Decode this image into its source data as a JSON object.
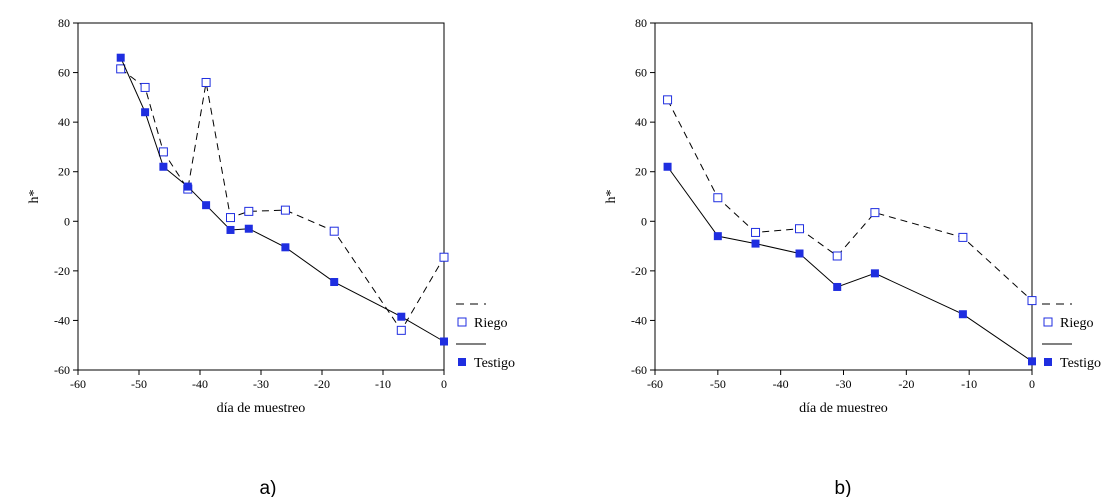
{
  "chart_data": [
    {
      "type": "line",
      "panel_label": "a)",
      "xlabel": "día de muestreo",
      "ylabel": "h*",
      "xlim": [
        -60,
        0
      ],
      "ylim": [
        -60,
        80
      ],
      "xticks": [
        -60,
        -50,
        -40,
        -30,
        -20,
        -10,
        0
      ],
      "yticks": [
        -60,
        -40,
        -20,
        0,
        20,
        40,
        60,
        80
      ],
      "grid": false,
      "legend_position": "right",
      "series": [
        {
          "name": "Riego",
          "marker": "open-square",
          "line": "dashed",
          "color": "#1f2ee0",
          "x": [
            -53,
            -49,
            -46,
            -42,
            -39,
            -35,
            -32,
            -26,
            -18,
            -7,
            0
          ],
          "y": [
            61.5,
            54,
            28,
            13,
            56,
            1.5,
            4,
            4.5,
            -4,
            -44,
            -14.5
          ]
        },
        {
          "name": "Testigo",
          "marker": "filled-square",
          "line": "solid",
          "color": "#1f2ee0",
          "x": [
            -53,
            -49,
            -46,
            -42,
            -39,
            -35,
            -32,
            -26,
            -18,
            -7,
            0
          ],
          "y": [
            66,
            44,
            22,
            14,
            6.5,
            -3.5,
            -3,
            -10.5,
            -24.5,
            -38.5,
            -48.5
          ]
        }
      ]
    },
    {
      "type": "line",
      "panel_label": "b)",
      "xlabel": "día de muestreo",
      "ylabel": "h*",
      "xlim": [
        -60,
        0
      ],
      "ylim": [
        -60,
        80
      ],
      "xticks": [
        -60,
        -50,
        -40,
        -30,
        -20,
        -10,
        0
      ],
      "yticks": [
        -60,
        -40,
        -20,
        0,
        20,
        40,
        60,
        80
      ],
      "grid": false,
      "legend_position": "right",
      "series": [
        {
          "name": "Riego",
          "marker": "open-square",
          "line": "dashed",
          "color": "#1f2ee0",
          "x": [
            -58,
            -50,
            -44,
            -37,
            -31,
            -25,
            -11,
            0
          ],
          "y": [
            49,
            9.5,
            -4.5,
            -3,
            -14,
            3.5,
            -6.5,
            -32
          ]
        },
        {
          "name": "Testigo",
          "marker": "filled-square",
          "line": "solid",
          "color": "#1f2ee0",
          "x": [
            -58,
            -50,
            -44,
            -37,
            -31,
            -25,
            -11,
            0
          ],
          "y": [
            22,
            -6,
            -9,
            -13,
            -26.5,
            -21,
            -37.5,
            -56.5
          ]
        }
      ]
    }
  ]
}
